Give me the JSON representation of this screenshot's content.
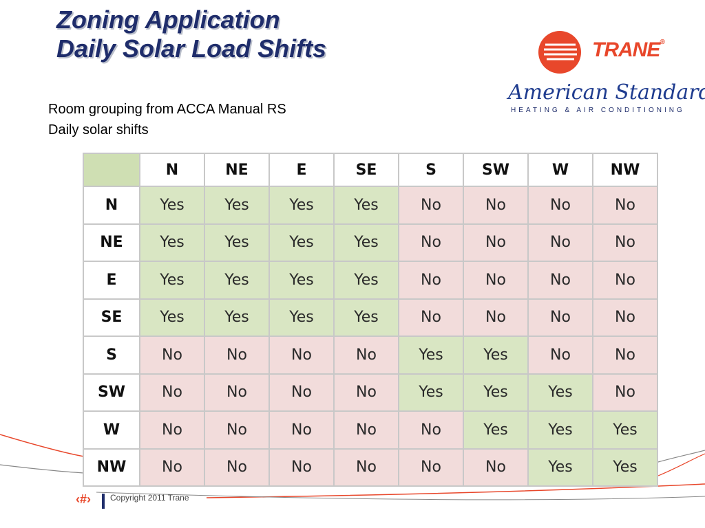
{
  "slide": {
    "title_lines": [
      "Zoning Application",
      "Daily Solar Load Shifts"
    ],
    "bullets": [
      "Room grouping from ACCA Manual RS",
      "Daily solar shifts"
    ]
  },
  "logos": {
    "trane": "TRANE",
    "trane_mark": "®",
    "american_standard": "American Standard",
    "american_standard_sub": "HEATING & AIR CONDITIONING"
  },
  "colors": {
    "title": "#1f2d6b",
    "trane_orange": "#e8472b",
    "yes_fill": "#d9e6c3",
    "no_fill": "#f2dcdb"
  },
  "table": {
    "columns": [
      "N",
      "NE",
      "E",
      "SE",
      "S",
      "SW",
      "W",
      "NW"
    ],
    "rows": [
      {
        "label": "N",
        "cells": [
          "Yes",
          "Yes",
          "Yes",
          "Yes",
          "No",
          "No",
          "No",
          "No"
        ]
      },
      {
        "label": "NE",
        "cells": [
          "Yes",
          "Yes",
          "Yes",
          "Yes",
          "No",
          "No",
          "No",
          "No"
        ]
      },
      {
        "label": "E",
        "cells": [
          "Yes",
          "Yes",
          "Yes",
          "Yes",
          "No",
          "No",
          "No",
          "No"
        ]
      },
      {
        "label": "SE",
        "cells": [
          "Yes",
          "Yes",
          "Yes",
          "Yes",
          "No",
          "No",
          "No",
          "No"
        ]
      },
      {
        "label": "S",
        "cells": [
          "No",
          "No",
          "No",
          "No",
          "Yes",
          "Yes",
          "No",
          "No"
        ]
      },
      {
        "label": "SW",
        "cells": [
          "No",
          "No",
          "No",
          "No",
          "Yes",
          "Yes",
          "Yes",
          "No"
        ]
      },
      {
        "label": "W",
        "cells": [
          "No",
          "No",
          "No",
          "No",
          "No",
          "Yes",
          "Yes",
          "Yes"
        ]
      },
      {
        "label": "NW",
        "cells": [
          "No",
          "No",
          "No",
          "No",
          "No",
          "No",
          "Yes",
          "Yes"
        ]
      }
    ]
  },
  "footer": {
    "page_number": "‹#›",
    "copyright": "Copyright 2011 Trane"
  }
}
